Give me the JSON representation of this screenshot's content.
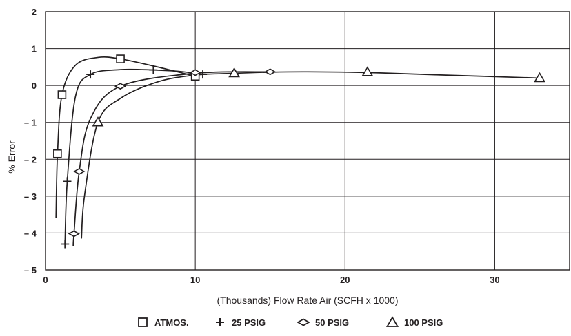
{
  "chart_data": {
    "type": "line",
    "xlabel": "(Thousands) Flow Rate Air (SCFH x 1000)",
    "ylabel": "% Error",
    "xlim": [
      0,
      35
    ],
    "ylim": [
      -5,
      2
    ],
    "x_ticks": [
      {
        "value": 0,
        "label": "0"
      },
      {
        "value": 10,
        "label": "10"
      },
      {
        "value": 20,
        "label": "20"
      },
      {
        "value": 30,
        "label": "30"
      }
    ],
    "y_ticks": [
      {
        "value": 2,
        "label": "2"
      },
      {
        "value": 1,
        "label": "1"
      },
      {
        "value": 0,
        "label": "0"
      },
      {
        "value": -1,
        "label": "– 1"
      },
      {
        "value": -2,
        "label": "– 2"
      },
      {
        "value": -3,
        "label": "– 3"
      },
      {
        "value": -4,
        "label": "– 4"
      },
      {
        "value": -5,
        "label": "– 5"
      }
    ],
    "grid": true,
    "legend_position": "bottom",
    "colors": {
      "line": "#231f20",
      "grid": "#231f20"
    },
    "series": [
      {
        "name": "ATMOS.",
        "marker": "square",
        "curve": [
          [
            0.7,
            -3.6
          ],
          [
            0.8,
            -1.85
          ],
          [
            1.1,
            -0.25
          ],
          [
            2,
            0.55
          ],
          [
            3.5,
            0.76
          ],
          [
            5,
            0.72
          ],
          [
            7.5,
            0.5
          ],
          [
            10,
            0.25
          ]
        ],
        "points": [
          [
            0.8,
            -1.85
          ],
          [
            1.1,
            -0.25
          ],
          [
            5,
            0.72
          ],
          [
            10,
            0.25
          ]
        ]
      },
      {
        "name": "25 PSIG",
        "marker": "plus",
        "curve": [
          [
            1.3,
            -4.3
          ],
          [
            1.45,
            -2.6
          ],
          [
            2,
            -0.3
          ],
          [
            3,
            0.3
          ],
          [
            5,
            0.43
          ],
          [
            7.2,
            0.42
          ],
          [
            9,
            0.38
          ],
          [
            10.5,
            0.3
          ]
        ],
        "points": [
          [
            1.3,
            -4.3
          ],
          [
            1.45,
            -2.6
          ],
          [
            3,
            0.3
          ],
          [
            7.2,
            0.42
          ],
          [
            10.5,
            0.3
          ]
        ]
      },
      {
        "name": "50 PSIG",
        "marker": "diamond",
        "curve": [
          [
            1.85,
            -4.35
          ],
          [
            1.9,
            -4.02
          ],
          [
            2.25,
            -2.33
          ],
          [
            3,
            -0.9
          ],
          [
            5,
            -0.02
          ],
          [
            10,
            0.33
          ],
          [
            15,
            0.37
          ]
        ],
        "points": [
          [
            1.9,
            -4.02
          ],
          [
            2.25,
            -2.33
          ],
          [
            5,
            -0.02
          ],
          [
            10,
            0.35
          ],
          [
            15,
            0.37
          ]
        ]
      },
      {
        "name": "100 PSIG",
        "marker": "triangle",
        "curve": [
          [
            2.4,
            -4.15
          ],
          [
            2.6,
            -3.0
          ],
          [
            3.5,
            -1.0
          ],
          [
            5,
            -0.35
          ],
          [
            7.5,
            0.1
          ],
          [
            10,
            0.28
          ],
          [
            12.6,
            0.33
          ],
          [
            15,
            0.36
          ],
          [
            17.5,
            0.37
          ],
          [
            21.5,
            0.35
          ],
          [
            26,
            0.29
          ],
          [
            33,
            0.2
          ]
        ],
        "points": [
          [
            3.5,
            -1.0
          ],
          [
            12.6,
            0.33
          ],
          [
            21.5,
            0.36
          ],
          [
            33,
            0.2
          ]
        ]
      }
    ]
  }
}
